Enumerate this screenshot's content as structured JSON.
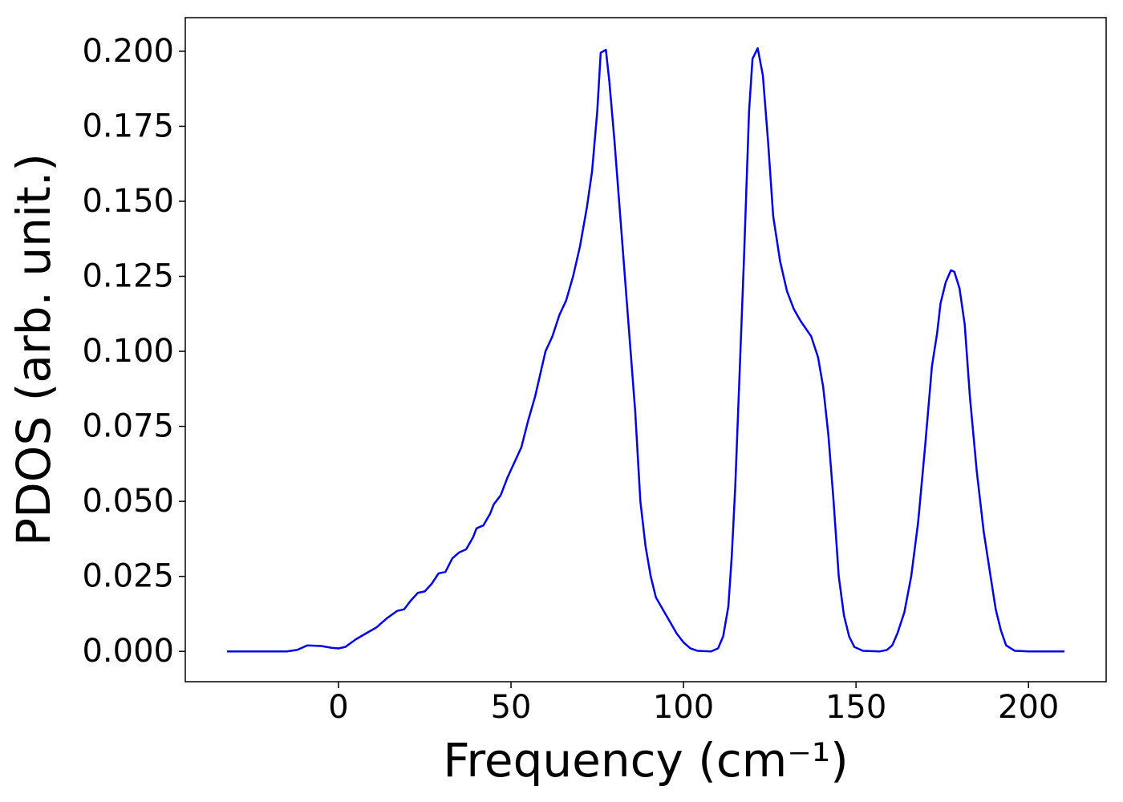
{
  "chart_data": {
    "type": "line",
    "xlabel": "Frequency (cm⁻¹)",
    "ylabel": "PDOS (arb. unit.)",
    "x": [
      -32.3,
      -15,
      -12,
      -9,
      -5,
      -2,
      0,
      2,
      5,
      8,
      11,
      14,
      17,
      19,
      21,
      23,
      25,
      27,
      29,
      31,
      33,
      35,
      37,
      39,
      40,
      42,
      44,
      45,
      47,
      49,
      51,
      53,
      55,
      57,
      59,
      60,
      62,
      64,
      66,
      68,
      70,
      72,
      73.5,
      75,
      76,
      77.5,
      78.5,
      80,
      82,
      84,
      86,
      87.5,
      89,
      90.5,
      92,
      94,
      96,
      98,
      100,
      102,
      104,
      108,
      110,
      111.5,
      113,
      114,
      115,
      116,
      117.5,
      119,
      120,
      121.5,
      123,
      124.5,
      126,
      128,
      130,
      132,
      134,
      137,
      139,
      140.5,
      142,
      143.5,
      145,
      146.5,
      148,
      149.5,
      152,
      157,
      159,
      160.5,
      162,
      164,
      166,
      168,
      170,
      172,
      173.5,
      174.5,
      176,
      177.5,
      178.5,
      180,
      181.5,
      183,
      185,
      187,
      189,
      190.5,
      192,
      193.5,
      196,
      200,
      210.4
    ],
    "series": [
      {
        "name": "PDOS",
        "color": "#0000ee",
        "values": [
          0,
          0,
          0.0005,
          0.002,
          0.0018,
          0.0012,
          0.001,
          0.0015,
          0.004,
          0.006,
          0.008,
          0.011,
          0.0135,
          0.014,
          0.017,
          0.0195,
          0.02,
          0.0225,
          0.026,
          0.0265,
          0.031,
          0.033,
          0.034,
          0.038,
          0.041,
          0.042,
          0.046,
          0.049,
          0.052,
          0.058,
          0.063,
          0.068,
          0.077,
          0.085,
          0.095,
          0.1,
          0.105,
          0.112,
          0.117,
          0.125,
          0.135,
          0.148,
          0.16,
          0.18,
          0.1995,
          0.2005,
          0.19,
          0.17,
          0.14,
          0.11,
          0.08,
          0.05,
          0.035,
          0.025,
          0.018,
          0.014,
          0.01,
          0.006,
          0.003,
          0.001,
          0.0002,
          0,
          0.001,
          0.005,
          0.015,
          0.032,
          0.055,
          0.085,
          0.13,
          0.18,
          0.1975,
          0.201,
          0.192,
          0.17,
          0.145,
          0.13,
          0.12,
          0.114,
          0.11,
          0.105,
          0.098,
          0.088,
          0.072,
          0.05,
          0.025,
          0.012,
          0.005,
          0.0015,
          0.0002,
          0,
          0.0005,
          0.002,
          0.006,
          0.013,
          0.025,
          0.043,
          0.068,
          0.095,
          0.106,
          0.116,
          0.123,
          0.127,
          0.1265,
          0.121,
          0.109,
          0.085,
          0.06,
          0.04,
          0.025,
          0.014,
          0.007,
          0.002,
          0.0002,
          0,
          0
        ]
      }
    ],
    "xlim": [
      -44.4,
      222.5
    ],
    "ylim": [
      -0.0101,
      0.2112
    ],
    "xticks": [
      0,
      50,
      100,
      150,
      200
    ],
    "yticks": [
      {
        "value": 0,
        "label": "0.000"
      },
      {
        "value": 0.025,
        "label": "0.025"
      },
      {
        "value": 0.05,
        "label": "0.050"
      },
      {
        "value": 0.075,
        "label": "0.075"
      },
      {
        "value": 0.1,
        "label": "0.100"
      },
      {
        "value": 0.125,
        "label": "0.125"
      },
      {
        "value": 0.15,
        "label": "0.150"
      },
      {
        "value": 0.175,
        "label": "0.175"
      },
      {
        "value": 0.2,
        "label": "0.200"
      }
    ]
  }
}
